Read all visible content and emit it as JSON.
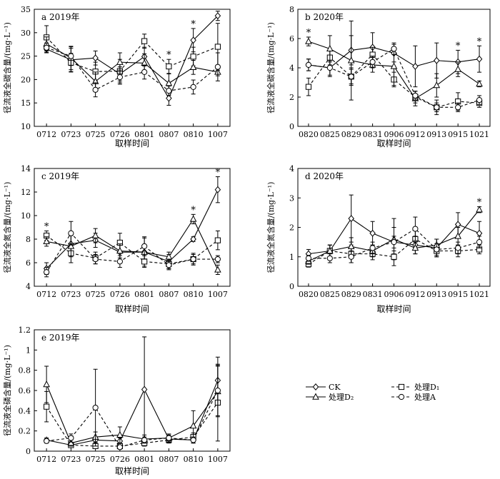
{
  "legend": [
    {
      "name": "CK",
      "marker": "diamond",
      "dash": "solid"
    },
    {
      "name": "处理D₁",
      "marker": "square",
      "dash": "dashed"
    },
    {
      "name": "处理D₂",
      "marker": "triangle",
      "dash": "solid"
    },
    {
      "name": "处理A",
      "marker": "circle",
      "dash": "dashed"
    }
  ],
  "chart_data": [
    {
      "type": "line",
      "title": "a 2019年",
      "xlabel": "取样时间",
      "ylabel": "径流液全碳含量/(mg·L⁻¹)",
      "categories": [
        "0712",
        "0723",
        "0725",
        "0726",
        "0801",
        "0807",
        "0810",
        "1007"
      ],
      "ylim": [
        10,
        35
      ],
      "yticks": [
        10,
        15,
        20,
        25,
        30,
        35
      ],
      "series": [
        {
          "name": "CK",
          "values": [
            26.5,
            24.2,
            24.6,
            21.2,
            24.9,
            16.0,
            28.4,
            33.6
          ],
          "err": [
            0.8,
            2.5,
            1.5,
            1.5,
            2.0,
            1.5,
            2.5,
            1.0
          ]
        },
        {
          "name": "处理D₁",
          "values": [
            29.0,
            23.6,
            21.7,
            21.8,
            28.2,
            22.8,
            24.9,
            27.0
          ],
          "err": [
            2.5,
            2.0,
            2.0,
            2.5,
            1.5,
            1.5,
            2.0,
            5.0
          ]
        },
        {
          "name": "处理D₂",
          "values": [
            27.6,
            24.6,
            19.6,
            23.7,
            23.5,
            19.2,
            22.6,
            21.6
          ],
          "err": [
            1.5,
            2.5,
            2.0,
            2.0,
            2.0,
            2.0,
            1.5,
            0.8
          ]
        },
        {
          "name": "处理A",
          "values": [
            26.8,
            25.0,
            17.8,
            20.5,
            21.6,
            17.6,
            18.4,
            22.7
          ],
          "err": [
            1.0,
            2.0,
            1.5,
            1.5,
            1.5,
            1.0,
            1.5,
            3.0
          ]
        }
      ],
      "stars": [
        "0807",
        "0810"
      ]
    },
    {
      "type": "line",
      "title": "b 2020年",
      "xlabel": "取样时间",
      "ylabel": "径流液全碳含量/(mg·L⁻¹)",
      "categories": [
        "0820",
        "0825",
        "0829",
        "0831",
        "0906",
        "0912",
        "0913",
        "0915",
        "1021"
      ],
      "ylim": [
        0,
        8
      ],
      "yticks": [
        0,
        2,
        4,
        6,
        8
      ],
      "series": [
        {
          "name": "CK",
          "values": [
            4.2,
            4.0,
            5.2,
            5.4,
            5.0,
            4.1,
            4.5,
            4.4,
            4.6
          ],
          "err": [
            0.4,
            0.6,
            1.0,
            1.0,
            0.6,
            1.4,
            1.2,
            0.8,
            0.9
          ]
        },
        {
          "name": "处理D₁",
          "values": [
            2.7,
            4.7,
            3.4,
            4.9,
            3.2,
            2.0,
            1.3,
            1.7,
            1.6
          ],
          "err": [
            0.6,
            0.5,
            0.6,
            0.5,
            0.5,
            0.4,
            0.3,
            0.6,
            0.3
          ]
        },
        {
          "name": "处理D₂",
          "values": [
            5.8,
            5.3,
            4.5,
            4.2,
            4.1,
            1.9,
            2.8,
            3.9,
            2.9
          ],
          "err": [
            0.3,
            0.9,
            2.7,
            0.5,
            1.3,
            0.5,
            0.8,
            0.5,
            0.2
          ]
        },
        {
          "name": "处理A",
          "values": [
            4.2,
            4.0,
            3.4,
            4.4,
            5.3,
            2.1,
            1.3,
            1.3,
            1.8
          ],
          "err": [
            0.4,
            0.5,
            0.5,
            0.4,
            0.4,
            0.3,
            0.5,
            0.3,
            0.3
          ]
        }
      ],
      "stars": [
        "0820",
        "0915",
        "1021"
      ]
    },
    {
      "type": "line",
      "title": "c 2019年",
      "xlabel": "取样时间",
      "ylabel": "径流液全氮含量/(mg·L⁻¹)",
      "categories": [
        "0712",
        "0723",
        "0725",
        "0726",
        "0801",
        "0807",
        "0810",
        "1007"
      ],
      "ylim": [
        4,
        14
      ],
      "yticks": [
        4,
        6,
        8,
        10,
        12,
        14
      ],
      "series": [
        {
          "name": "CK",
          "values": [
            5.5,
            7.6,
            7.9,
            6.9,
            6.9,
            6.1,
            8.0,
            12.2
          ],
          "err": [
            0.5,
            0.8,
            0.6,
            0.9,
            1.2,
            0.6,
            0.2,
            1.1
          ]
        },
        {
          "name": "处理D₁",
          "values": [
            8.3,
            6.8,
            6.4,
            7.7,
            6.1,
            5.9,
            6.3,
            7.9
          ],
          "err": [
            0.4,
            0.8,
            0.5,
            0.8,
            0.5,
            0.4,
            0.4,
            0.8
          ]
        },
        {
          "name": "处理D₂",
          "values": [
            7.8,
            7.4,
            8.3,
            7.0,
            6.9,
            6.5,
            9.7,
            5.4
          ],
          "err": [
            0.4,
            0.9,
            0.6,
            0.6,
            0.6,
            0.4,
            0.4,
            0.4
          ]
        },
        {
          "name": "处理A",
          "values": [
            5.2,
            8.5,
            6.3,
            6.1,
            7.4,
            5.8,
            6.3,
            6.3
          ],
          "err": [
            0.4,
            1.0,
            0.4,
            0.5,
            0.8,
            0.4,
            0.5,
            0.3
          ]
        }
      ],
      "stars": [
        "0712",
        "0810",
        "1007"
      ]
    },
    {
      "type": "line",
      "title": "d 2020年",
      "xlabel": "取样时间",
      "ylabel": "径流液全氮含量/(mg·L⁻¹)",
      "categories": [
        "0820",
        "0825",
        "0829",
        "0831",
        "0906",
        "0912",
        "0913",
        "0915",
        "1021"
      ],
      "ylim": [
        0,
        4
      ],
      "yticks": [
        0,
        1,
        2,
        3,
        4
      ],
      "series": [
        {
          "name": "CK",
          "values": [
            1.1,
            1.2,
            2.3,
            1.8,
            1.5,
            1.4,
            1.3,
            2.1,
            1.8
          ],
          "err": [
            0.15,
            0.2,
            0.8,
            0.4,
            0.8,
            0.3,
            0.3,
            0.4,
            0.4
          ]
        },
        {
          "name": "处理D₁",
          "values": [
            0.75,
            1.2,
            1.1,
            1.1,
            1.0,
            1.6,
            1.2,
            1.2,
            1.25
          ],
          "err": [
            0.1,
            0.2,
            0.3,
            0.2,
            0.1,
            0.3,
            0.2,
            0.2,
            0.15
          ]
        },
        {
          "name": "处理D₂",
          "values": [
            0.85,
            1.2,
            1.35,
            1.2,
            1.6,
            1.3,
            1.4,
            1.7,
            2.6
          ],
          "err": [
            0.1,
            0.2,
            0.3,
            0.2,
            0.4,
            0.2,
            0.2,
            0.3,
            0.1
          ]
        },
        {
          "name": "处理A",
          "values": [
            0.95,
            0.95,
            1.0,
            1.3,
            1.5,
            1.95,
            1.25,
            1.3,
            1.5
          ],
          "err": [
            0.1,
            0.15,
            0.2,
            0.2,
            0.2,
            0.4,
            0.2,
            0.2,
            0.2
          ]
        }
      ],
      "stars": [
        "1021"
      ]
    },
    {
      "type": "line",
      "title": "e 2019年",
      "xlabel": "取样时间",
      "ylabel": "径流液全磷含量/(mg·L⁻¹)",
      "categories": [
        "0712",
        "0723",
        "0725",
        "0726",
        "0801",
        "0807",
        "0810",
        "1007"
      ],
      "ylim": [
        0,
        1.2
      ],
      "yticks": [
        0,
        0.2,
        0.4,
        0.6,
        0.8,
        1.0,
        1.2
      ],
      "series": [
        {
          "name": "CK",
          "values": [
            0.11,
            0.06,
            0.11,
            0.1,
            0.61,
            0.12,
            0.11,
            0.7
          ],
          "err": [
            0.02,
            0.02,
            0.03,
            0.03,
            0.52,
            0.03,
            0.03,
            0.23
          ]
        },
        {
          "name": "处理D₁",
          "values": [
            0.44,
            0.06,
            0.05,
            0.05,
            0.08,
            0.11,
            0.14,
            0.48
          ],
          "err": [
            0.15,
            0.02,
            0.02,
            0.02,
            0.03,
            0.03,
            0.04,
            0.38
          ]
        },
        {
          "name": "处理D₂",
          "values": [
            0.66,
            0.08,
            0.14,
            0.16,
            0.12,
            0.13,
            0.25,
            0.59
          ],
          "err": [
            0.18,
            0.03,
            0.05,
            0.08,
            0.04,
            0.04,
            0.15,
            0.25
          ]
        },
        {
          "name": "处理A",
          "values": [
            0.1,
            0.13,
            0.43,
            0.04,
            0.11,
            0.13,
            0.11,
            0.6
          ],
          "err": [
            0.02,
            0.04,
            0.38,
            0.02,
            0.03,
            0.03,
            0.03,
            0.25
          ]
        }
      ],
      "stars": []
    }
  ]
}
